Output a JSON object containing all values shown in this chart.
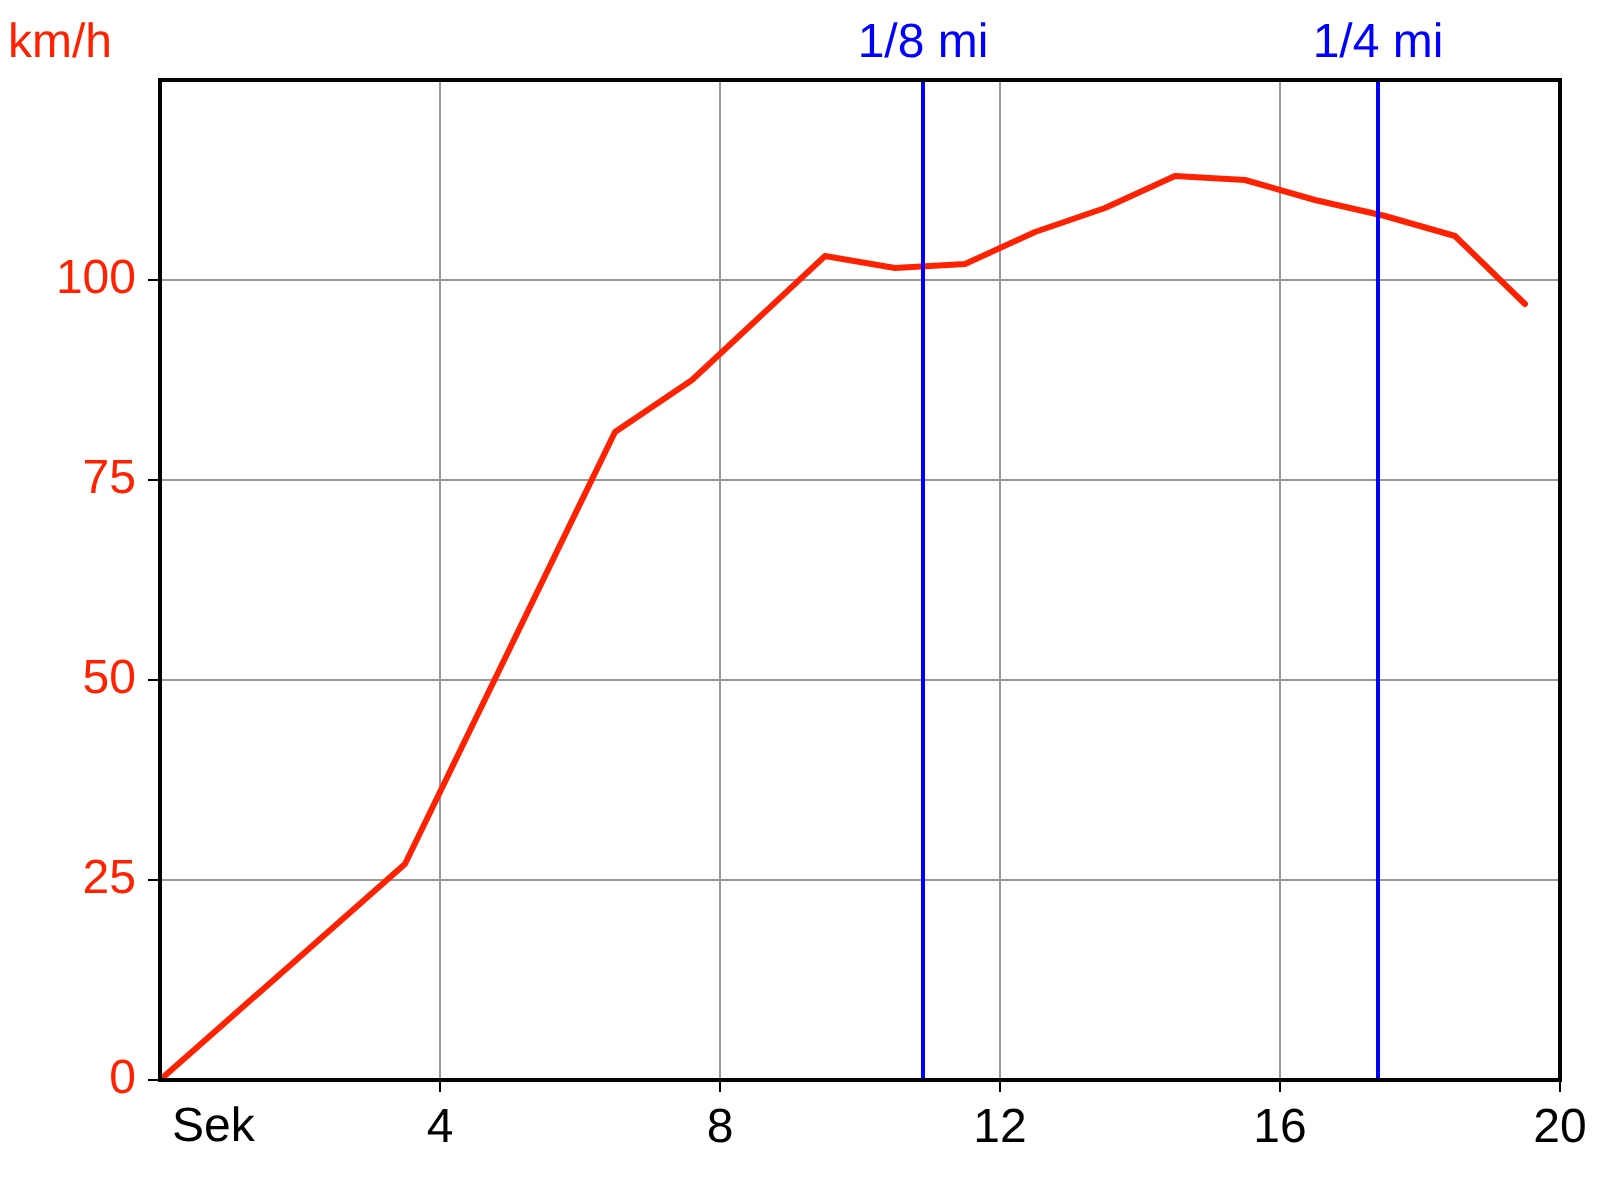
{
  "chart_data": {
    "type": "line",
    "xlabel": "Sek",
    "ylabel": "km/h",
    "series": [
      {
        "color": "#ff2200",
        "x": [
          0,
          3.5,
          6.5,
          7.6,
          9.5,
          10.5,
          11.5,
          12.5,
          13.5,
          14.5,
          15.5,
          16.5,
          17.5,
          18.5,
          19.5
        ],
        "values": [
          0,
          27,
          81,
          87.5,
          103,
          101.5,
          102,
          106,
          109,
          113,
          112.5,
          110,
          108,
          105.5,
          97
        ]
      }
    ],
    "xlim": [
      0,
      20
    ],
    "xticks": [
      4,
      8,
      12,
      16,
      20
    ],
    "ylim": [
      0,
      125
    ],
    "yticks": [
      0,
      25,
      50,
      75,
      100
    ],
    "grid": true,
    "marker": "none",
    "line_style": "solid",
    "ref_lines": [
      {
        "axis": "x",
        "value": 10.9,
        "label": "1/8 mi",
        "color": "#0000ff"
      },
      {
        "axis": "x",
        "value": 17.4,
        "label": "1/4 mi",
        "color": "#0000ff"
      }
    ]
  }
}
